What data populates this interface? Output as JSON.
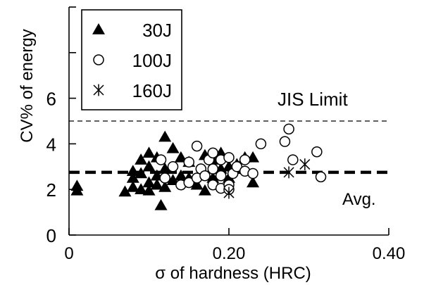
{
  "chart_data": {
    "type": "scatter",
    "xlabel": "σ of hardness (HRC)",
    "ylabel": "CV% of energy",
    "xlim": [
      0,
      0.4
    ],
    "ylim": [
      0,
      10
    ],
    "x_ticks": [
      {
        "value": 0,
        "label": "0"
      },
      {
        "value": 0.2,
        "label": "0.20"
      },
      {
        "value": 0.4,
        "label": "0.40"
      }
    ],
    "y_ticks": [
      {
        "value": 0,
        "label": "0"
      },
      {
        "value": 2,
        "label": "2"
      },
      {
        "value": 4,
        "label": "4"
      },
      {
        "value": 6,
        "label": "6"
      }
    ],
    "y_minor_ticks": [
      8,
      10
    ],
    "grid": false,
    "legend_position": "top-left",
    "reference_lines": [
      {
        "label": "JIS Limit",
        "y": 5.0,
        "style": "thin-dashed"
      },
      {
        "label": "Avg.",
        "y": 2.75,
        "style": "thick-dashed"
      }
    ],
    "series": [
      {
        "name": "30J",
        "marker": "filled-triangle",
        "points": [
          [
            0.01,
            2.15
          ],
          [
            0.01,
            1.95
          ],
          [
            0.07,
            1.9
          ],
          [
            0.08,
            2.1
          ],
          [
            0.08,
            2.5
          ],
          [
            0.08,
            2.8
          ],
          [
            0.09,
            2.0
          ],
          [
            0.09,
            2.7
          ],
          [
            0.09,
            3.3
          ],
          [
            0.1,
            1.95
          ],
          [
            0.1,
            2.3
          ],
          [
            0.1,
            3.0
          ],
          [
            0.1,
            3.6
          ],
          [
            0.11,
            2.2
          ],
          [
            0.11,
            2.6
          ],
          [
            0.11,
            3.4
          ],
          [
            0.115,
            1.3
          ],
          [
            0.12,
            2.1
          ],
          [
            0.12,
            2.9
          ],
          [
            0.12,
            4.3
          ],
          [
            0.13,
            2.4
          ],
          [
            0.13,
            3.8
          ],
          [
            0.14,
            2.6
          ],
          [
            0.14,
            3.4
          ],
          [
            0.15,
            2.5
          ],
          [
            0.15,
            3.2
          ],
          [
            0.16,
            2.2
          ],
          [
            0.17,
            1.95
          ],
          [
            0.17,
            3.5
          ],
          [
            0.18,
            3.3
          ],
          [
            0.18,
            2.5
          ],
          [
            0.19,
            2.9
          ],
          [
            0.19,
            3.6
          ],
          [
            0.2,
            2.5
          ],
          [
            0.2,
            3.0
          ],
          [
            0.21,
            3.1
          ],
          [
            0.22,
            3.4
          ],
          [
            0.23,
            2.3
          ],
          [
            0.23,
            3.4
          ]
        ]
      },
      {
        "name": "100J",
        "marker": "open-circle",
        "points": [
          [
            0.115,
            3.3
          ],
          [
            0.12,
            2.5
          ],
          [
            0.13,
            3.0
          ],
          [
            0.14,
            2.2
          ],
          [
            0.15,
            3.2
          ],
          [
            0.15,
            2.3
          ],
          [
            0.16,
            2.5
          ],
          [
            0.16,
            3.9
          ],
          [
            0.165,
            2.9
          ],
          [
            0.17,
            2.6
          ],
          [
            0.175,
            3.3
          ],
          [
            0.18,
            2.9
          ],
          [
            0.18,
            2.2
          ],
          [
            0.18,
            3.6
          ],
          [
            0.19,
            2.05
          ],
          [
            0.19,
            3.3
          ],
          [
            0.19,
            2.6
          ],
          [
            0.2,
            2.2
          ],
          [
            0.2,
            2.0
          ],
          [
            0.2,
            3.4
          ],
          [
            0.205,
            2.7
          ],
          [
            0.21,
            3.0
          ],
          [
            0.22,
            2.8
          ],
          [
            0.22,
            3.3
          ],
          [
            0.23,
            2.7
          ],
          [
            0.24,
            4.0
          ],
          [
            0.27,
            4.1
          ],
          [
            0.275,
            4.65
          ],
          [
            0.28,
            3.3
          ],
          [
            0.31,
            3.65
          ],
          [
            0.315,
            2.55
          ]
        ]
      },
      {
        "name": "160J",
        "marker": "asterisk",
        "points": [
          [
            0.2,
            1.85
          ],
          [
            0.275,
            2.75
          ],
          [
            0.295,
            3.1
          ]
        ]
      }
    ]
  }
}
